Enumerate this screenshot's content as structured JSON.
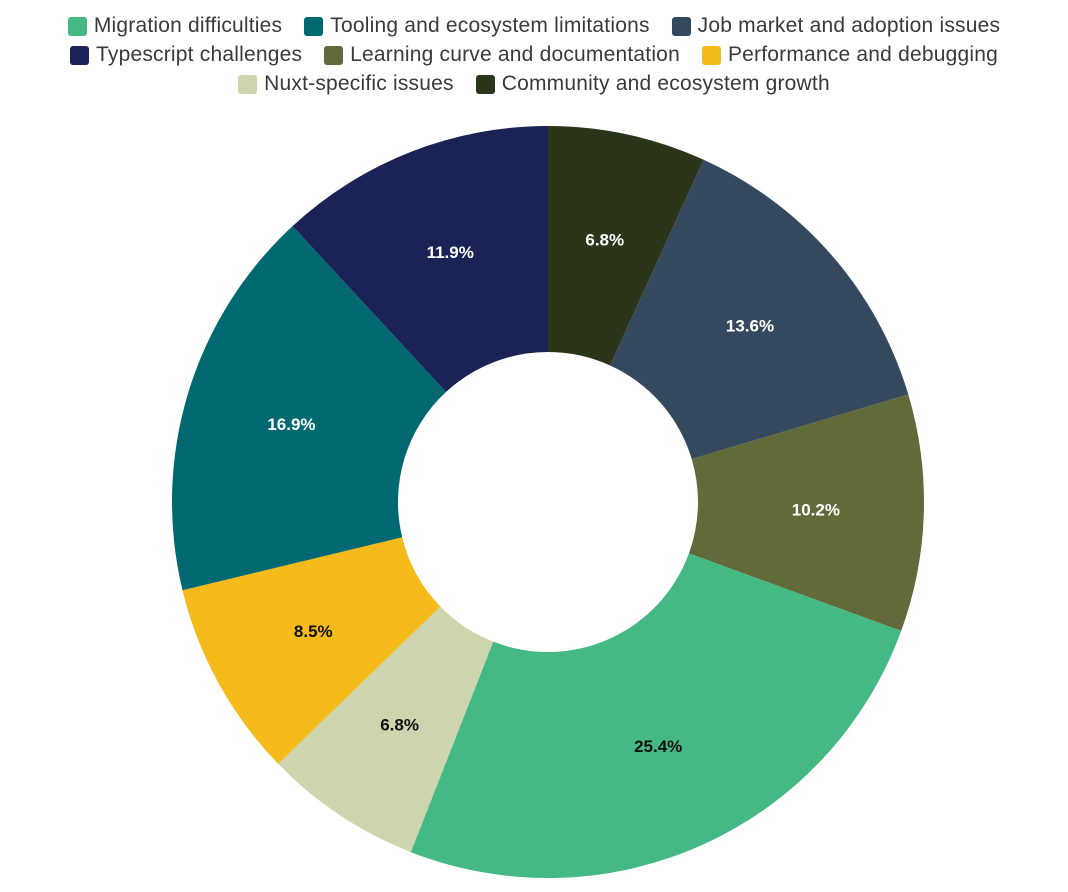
{
  "chart_data": {
    "type": "pie",
    "donut": true,
    "legend_position": "top",
    "title": "",
    "categories": [
      "Migration difficulties",
      "Tooling and ecosystem limitations",
      "Job market and adoption issues",
      "Typescript challenges",
      "Learning curve and documentation",
      "Performance and debugging",
      "Nuxt-specific issues",
      "Community and ecosystem growth"
    ],
    "colors": [
      "#44b984",
      "#006870",
      "#34495e",
      "#1b2256",
      "#606b39",
      "#f5bb1a",
      "#cdd5ae",
      "#2a3519"
    ],
    "slice_order": [
      "Community and ecosystem growth",
      "Job market and adoption issues",
      "Learning curve and documentation",
      "Migration difficulties",
      "Nuxt-specific issues",
      "Performance and debugging",
      "Tooling and ecosystem limitations",
      "Typescript challenges"
    ],
    "values": [
      6.8,
      13.6,
      10.2,
      25.4,
      6.8,
      8.5,
      16.9,
      11.9
    ],
    "labels": [
      "6.8%",
      "13.6%",
      "10.2%",
      "25.4%",
      "6.8%",
      "8.5%",
      "16.9%",
      "11.9%"
    ],
    "label_colors": [
      "#ffffff",
      "#ffffff",
      "#ffffff",
      "#111111",
      "#111111",
      "#111111",
      "#ffffff",
      "#ffffff"
    ]
  }
}
